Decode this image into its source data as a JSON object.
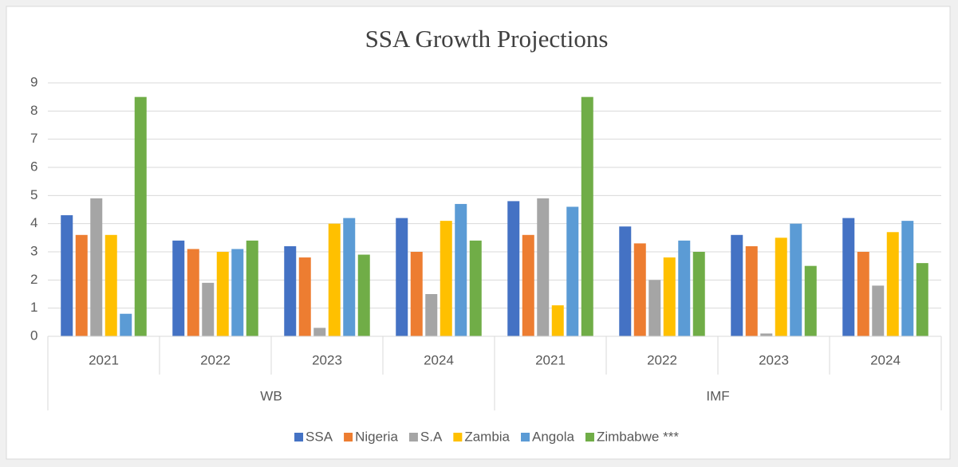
{
  "chart_data": {
    "type": "bar",
    "title": "SSA Growth Projections",
    "categories": [
      "2021",
      "2022",
      "2023",
      "2024",
      "2021",
      "2022",
      "2023",
      "2024"
    ],
    "category_groups": [
      "WB",
      "IMF"
    ],
    "series": [
      {
        "name": "SSA",
        "color": "#4472c4",
        "values": [
          4.3,
          3.4,
          3.2,
          4.2,
          4.8,
          3.9,
          3.6,
          4.2
        ]
      },
      {
        "name": "Nigeria",
        "color": "#ed7d31",
        "values": [
          3.6,
          3.1,
          2.8,
          3.0,
          3.6,
          3.3,
          3.2,
          3.0
        ]
      },
      {
        "name": "S.A",
        "color": "#a5a5a5",
        "values": [
          4.9,
          1.9,
          0.3,
          1.5,
          4.9,
          2.0,
          0.1,
          1.8
        ]
      },
      {
        "name": "Zambia",
        "color": "#ffc000",
        "values": [
          3.6,
          3.0,
          4.0,
          4.1,
          1.1,
          2.8,
          3.5,
          3.7
        ]
      },
      {
        "name": "Angola",
        "color": "#5b9bd5",
        "values": [
          0.8,
          3.1,
          4.2,
          4.7,
          4.6,
          3.4,
          4.0,
          4.1
        ]
      },
      {
        "name": "Zimbabwe ***",
        "color": "#70ad47",
        "values": [
          8.5,
          3.4,
          2.9,
          3.4,
          8.5,
          3.0,
          2.5,
          2.6
        ]
      }
    ],
    "ylim": [
      0,
      9
    ],
    "yticks": [
      0,
      1,
      2,
      3,
      4,
      5,
      6,
      7,
      8,
      9
    ],
    "grid": true,
    "legend": "bottom"
  }
}
